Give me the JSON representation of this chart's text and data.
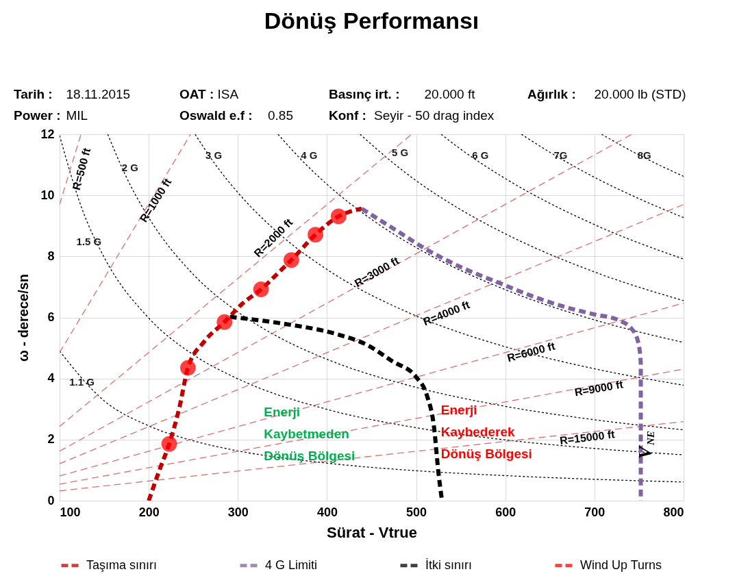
{
  "chart_data": {
    "type": "line",
    "title": "Dönüş Performansı",
    "xlabel": "Sürat - Vtrue",
    "ylabel": "ω - derece/sn",
    "xlim": [
      100,
      800
    ],
    "xticks": [
      100,
      200,
      300,
      400,
      500,
      600,
      700,
      800
    ],
    "ylim": [
      0,
      12
    ],
    "yticks": [
      0,
      2,
      4,
      6,
      8,
      10,
      12
    ],
    "grid": true,
    "legend": "bottom",
    "series": [
      {
        "color": "#000000",
        "line_style": "dotted",
        "x": [
          100,
          150,
          200,
          250,
          300,
          400,
          500,
          600,
          700,
          800
        ],
        "values": [
          4.9,
          3.27,
          2.45,
          1.96,
          1.63,
          1.23,
          0.98,
          0.82,
          0.7,
          0.61
        ]
      },
      {
        "color": "#000000",
        "line_style": "dotted",
        "x": [
          100,
          125,
          150,
          200,
          250,
          300,
          400,
          500,
          600,
          700,
          800
        ],
        "values": [
          11.96,
          9.57,
          7.97,
          5.98,
          4.78,
          3.99,
          2.99,
          2.39,
          1.99,
          1.71,
          1.5
        ]
      },
      {
        "color": "#000000",
        "line_style": "dotted",
        "x": [
          154,
          175,
          200,
          250,
          300,
          350,
          400,
          500,
          600,
          700,
          800
        ],
        "values": [
          12,
          10.59,
          9.27,
          7.41,
          6.18,
          5.29,
          4.63,
          3.71,
          3.09,
          2.65,
          2.32
        ]
      },
      {
        "color": "#000000",
        "line_style": "dotted",
        "x": [
          252,
          275,
          300,
          350,
          400,
          500,
          600,
          700,
          800
        ],
        "values": [
          12,
          11.0,
          10.09,
          8.65,
          7.57,
          6.05,
          5.04,
          4.32,
          3.78
        ]
      },
      {
        "color": "#000000",
        "line_style": "dotted",
        "x": [
          345,
          375,
          400,
          450,
          500,
          600,
          700,
          800
        ],
        "values": [
          12,
          11.05,
          10.36,
          9.21,
          8.29,
          6.91,
          5.92,
          5.18
        ]
      },
      {
        "color": "#000000",
        "line_style": "dotted",
        "x": [
          437,
          475,
          500,
          550,
          600,
          700,
          800
        ],
        "values": [
          12,
          11.04,
          10.48,
          9.53,
          8.74,
          7.49,
          6.55
        ]
      },
      {
        "color": "#000000",
        "line_style": "dotted",
        "x": [
          528,
          550,
          600,
          700,
          800
        ],
        "values": [
          12,
          11.51,
          10.55,
          9.04,
          7.91
        ]
      },
      {
        "color": "#000000",
        "line_style": "dotted",
        "x": [
          618,
          650,
          700,
          750,
          800
        ],
        "values": [
          12,
          11.41,
          10.59,
          9.89,
          9.27
        ]
      },
      {
        "color": "#000000",
        "line_style": "dotted",
        "x": [
          708,
          750,
          800
        ],
        "values": [
          12,
          11.32,
          10.62
        ]
      },
      {
        "color": "#d9706c",
        "line_style": "dashed",
        "x": [
          100,
          124
        ],
        "values": [
          9.7,
          12
        ]
      },
      {
        "color": "#d9706c",
        "line_style": "dashed",
        "x": [
          100,
          247
        ],
        "values": [
          4.85,
          12
        ]
      },
      {
        "color": "#d9706c",
        "line_style": "dashed",
        "x": [
          100,
          495
        ],
        "values": [
          2.43,
          12
        ]
      },
      {
        "color": "#d9706c",
        "line_style": "dashed",
        "x": [
          100,
          742
        ],
        "values": [
          1.62,
          12
        ]
      },
      {
        "color": "#d9706c",
        "line_style": "dashed",
        "x": [
          100,
          800
        ],
        "values": [
          1.21,
          9.7
        ]
      },
      {
        "color": "#d9706c",
        "line_style": "dashed",
        "x": [
          100,
          800
        ],
        "values": [
          0.81,
          6.47
        ]
      },
      {
        "color": "#d9706c",
        "line_style": "dashed",
        "x": [
          100,
          800
        ],
        "values": [
          0.54,
          4.31
        ]
      },
      {
        "color": "#d9706c",
        "line_style": "dashed",
        "x": [
          100,
          800
        ],
        "values": [
          0.32,
          2.59
        ]
      },
      {
        "name": "Taşıma sınırı",
        "color": "#c00000",
        "line_style": "dashed",
        "x": [
          200,
          212,
          223,
          234,
          244,
          262,
          285,
          305,
          326,
          345,
          360,
          387,
          413,
          439
        ],
        "values": [
          0,
          1.0,
          1.86,
          3.0,
          4.35,
          5.2,
          5.85,
          6.45,
          6.92,
          7.45,
          7.88,
          8.71,
          9.31,
          9.56
        ]
      },
      {
        "name": "4 G Limiti",
        "color": "#8064a2",
        "line_style": "dashed",
        "x": [
          439,
          475,
          512,
          550,
          594,
          630,
          665,
          700,
          727,
          742,
          749,
          752,
          752
        ],
        "values": [
          9.56,
          8.9,
          8.22,
          7.65,
          7.12,
          6.7,
          6.36,
          6.1,
          5.91,
          5.62,
          5.2,
          4.5,
          0
        ]
      },
      {
        "name": "İtki sınırı",
        "color": "#000000",
        "line_style": "dashed",
        "x": [
          291,
          350,
          410,
          445,
          473,
          500,
          512,
          520,
          525,
          529
        ],
        "values": [
          6.02,
          5.8,
          5.46,
          5.1,
          4.57,
          4.05,
          3.45,
          2.42,
          0.92,
          0
        ]
      },
      {
        "name": "Wind Up Turns",
        "type": "scatter",
        "marker": "circle",
        "color": "#ff0000",
        "x": [
          223,
          244,
          285,
          326,
          360,
          387,
          413
        ],
        "values": [
          1.86,
          4.35,
          5.85,
          6.92,
          7.88,
          8.71,
          9.31
        ]
      }
    ],
    "annotations": [
      "Tarih : 18.11.2015",
      "OAT : ISA",
      "Basınç irt. : 20.000 ft",
      "Ağırlık : 20.000 lb (STD)",
      "Power : MIL",
      "Oswald e.f : 0.85",
      "Konf : Seyir - 50 drag index",
      "R=500 ft",
      "R=1000 ft",
      "R=2000 ft",
      "R=3000 ft",
      "R=4000 ft",
      "R=6000 ft",
      "R=9000 ft",
      "R=15000 ft",
      "V$_{NE}$",
      "2 G",
      "3 G",
      "4 G",
      "5 G",
      "6 G",
      "7G",
      "8G",
      "1.5 G",
      "1.1 G",
      "Enerji\nKaybetmeden\nDönüş Bölgesi",
      "Enerji\nKaybederek\nDönüş Bölgesi"
    ]
  }
}
